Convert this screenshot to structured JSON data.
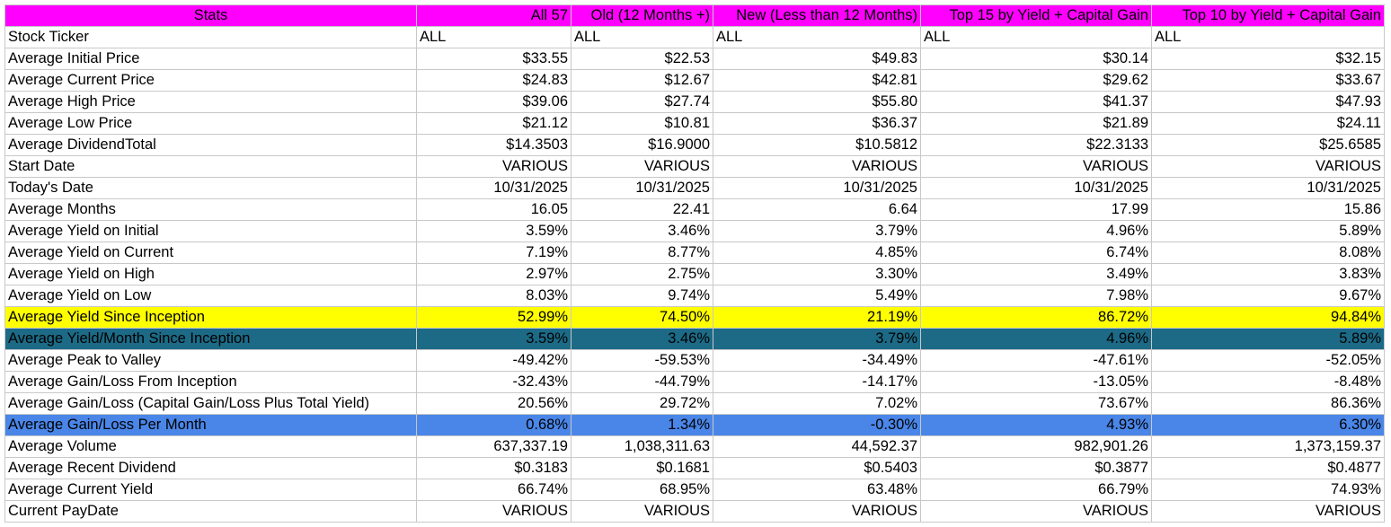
{
  "header": [
    "Stats",
    "All 57",
    "Old (12 Months +)",
    "New (Less than 12 Months)",
    "Top 15 by Yield + Capital Gain",
    "Top 10 by Yield + Capital Gain"
  ],
  "rows": [
    {
      "label": "Stock Ticker",
      "values": [
        "ALL",
        "ALL",
        "ALL",
        "ALL",
        "ALL"
      ],
      "align": "left",
      "style": ""
    },
    {
      "label": "Average Initial Price",
      "values": [
        "$33.55",
        "$22.53",
        "$49.83",
        "$30.14",
        "$32.15"
      ],
      "align": "right",
      "style": ""
    },
    {
      "label": "Average Current Price",
      "values": [
        "$24.83",
        "$12.67",
        "$42.81",
        "$29.62",
        "$33.67"
      ],
      "align": "right",
      "style": ""
    },
    {
      "label": "Average High Price",
      "values": [
        "$39.06",
        "$27.74",
        "$55.80",
        "$41.37",
        "$47.93"
      ],
      "align": "right",
      "style": ""
    },
    {
      "label": "Average Low Price",
      "values": [
        "$21.12",
        "$10.81",
        "$36.37",
        "$21.89",
        "$24.11"
      ],
      "align": "right",
      "style": ""
    },
    {
      "label": "Average DividendTotal",
      "values": [
        "$14.3503",
        "$16.9000",
        "$10.5812",
        "$22.3133",
        "$25.6585"
      ],
      "align": "right",
      "style": ""
    },
    {
      "label": "Start Date",
      "values": [
        "VARIOUS",
        "VARIOUS",
        "VARIOUS",
        "VARIOUS",
        "VARIOUS"
      ],
      "align": "right",
      "style": ""
    },
    {
      "label": "Today's Date",
      "values": [
        "10/31/2025",
        "10/31/2025",
        "10/31/2025",
        "10/31/2025",
        "10/31/2025"
      ],
      "align": "right",
      "style": ""
    },
    {
      "label": "Average Months",
      "values": [
        "16.05",
        "22.41",
        "6.64",
        "17.99",
        "15.86"
      ],
      "align": "right",
      "style": ""
    },
    {
      "label": "Average Yield on Initial",
      "values": [
        "3.59%",
        "3.46%",
        "3.79%",
        "4.96%",
        "5.89%"
      ],
      "align": "right",
      "style": ""
    },
    {
      "label": "Average Yield on Current",
      "values": [
        "7.19%",
        "8.77%",
        "4.85%",
        "6.74%",
        "8.08%"
      ],
      "align": "right",
      "style": ""
    },
    {
      "label": "Average Yield on High",
      "values": [
        "2.97%",
        "2.75%",
        "3.30%",
        "3.49%",
        "3.83%"
      ],
      "align": "right",
      "style": ""
    },
    {
      "label": "Average Yield on Low",
      "values": [
        "8.03%",
        "9.74%",
        "5.49%",
        "7.98%",
        "9.67%"
      ],
      "align": "right",
      "style": ""
    },
    {
      "label": "Average Yield Since Inception",
      "values": [
        "52.99%",
        "74.50%",
        "21.19%",
        "86.72%",
        "94.84%"
      ],
      "align": "right",
      "style": "row-yellow"
    },
    {
      "label": "Average Yield/Month Since Inception",
      "values": [
        "3.59%",
        "3.46%",
        "3.79%",
        "4.96%",
        "5.89%"
      ],
      "align": "right",
      "style": "row-teal"
    },
    {
      "label": "Average Peak to Valley",
      "values": [
        "-49.42%",
        "-59.53%",
        "-34.49%",
        "-47.61%",
        "-52.05%"
      ],
      "align": "right",
      "style": ""
    },
    {
      "label": "Average Gain/Loss From Inception",
      "values": [
        "-32.43%",
        "-44.79%",
        "-14.17%",
        "-13.05%",
        "-8.48%"
      ],
      "align": "right",
      "style": ""
    },
    {
      "label": "Average Gain/Loss (Capital Gain/Loss Plus Total Yield)",
      "values": [
        "20.56%",
        "29.72%",
        "7.02%",
        "73.67%",
        "86.36%"
      ],
      "align": "right",
      "style": ""
    },
    {
      "label": "Average Gain/Loss Per Month",
      "values": [
        "0.68%",
        "1.34%",
        "-0.30%",
        "4.93%",
        "6.30%"
      ],
      "align": "right",
      "style": "row-blue"
    },
    {
      "label": "Average Volume",
      "values": [
        "637,337.19",
        "1,038,311.63",
        "44,592.37",
        "982,901.26",
        "1,373,159.37"
      ],
      "align": "right",
      "style": ""
    },
    {
      "label": "Average Recent Dividend",
      "values": [
        "$0.3183",
        "$0.1681",
        "$0.5403",
        "$0.3877",
        "$0.4877"
      ],
      "align": "right",
      "style": ""
    },
    {
      "label": "Average Current Yield",
      "values": [
        "66.74%",
        "68.95%",
        "63.48%",
        "66.79%",
        "74.93%"
      ],
      "align": "right",
      "style": ""
    },
    {
      "label": "Current PayDate",
      "values": [
        "VARIOUS",
        "VARIOUS",
        "VARIOUS",
        "VARIOUS",
        "VARIOUS"
      ],
      "align": "right",
      "style": ""
    }
  ]
}
